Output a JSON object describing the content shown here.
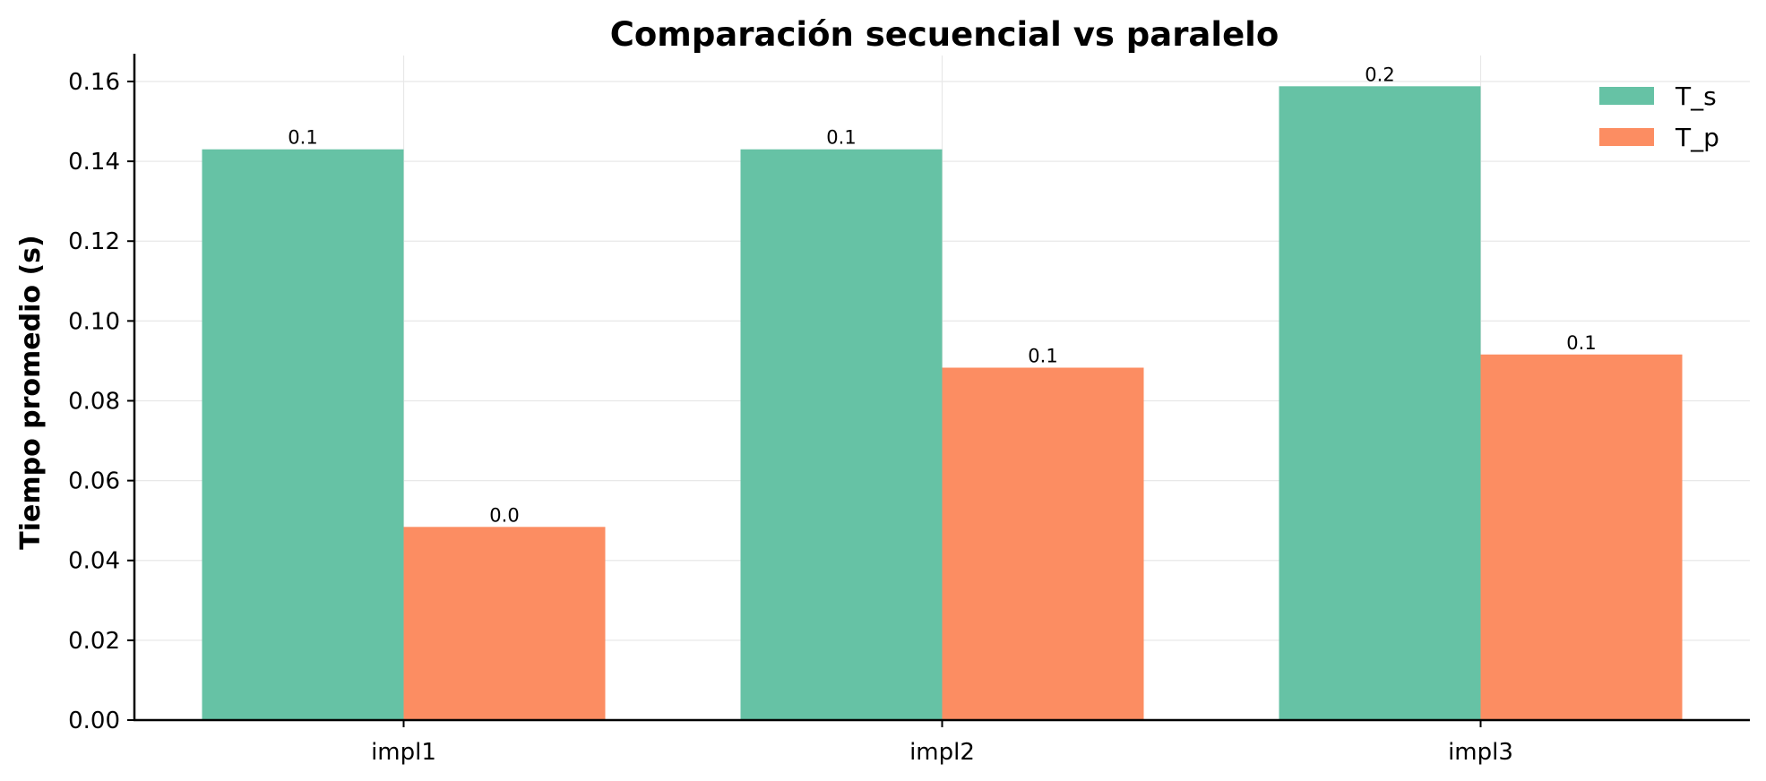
{
  "chart_data": {
    "type": "bar",
    "title": "Comparación secuencial vs paralelo",
    "xlabel": "",
    "ylabel": "Tiempo promedio (s)",
    "categories": [
      "impl1",
      "impl2",
      "impl3"
    ],
    "series": [
      {
        "name": "T_s",
        "color": "#66c2a5",
        "values": [
          0.143,
          0.143,
          0.1588
        ],
        "labels": [
          "0.1",
          "0.1",
          "0.2"
        ]
      },
      {
        "name": "T_p",
        "color": "#fc8d62",
        "values": [
          0.0484,
          0.0883,
          0.0916
        ],
        "labels": [
          "0.0",
          "0.1",
          "0.1"
        ]
      }
    ],
    "ylim": [
      0,
      0.1665
    ],
    "yticks": [
      "0.00",
      "0.02",
      "0.04",
      "0.06",
      "0.08",
      "0.10",
      "0.12",
      "0.14",
      "0.16"
    ],
    "grid": true,
    "legend_position": "top-right"
  }
}
